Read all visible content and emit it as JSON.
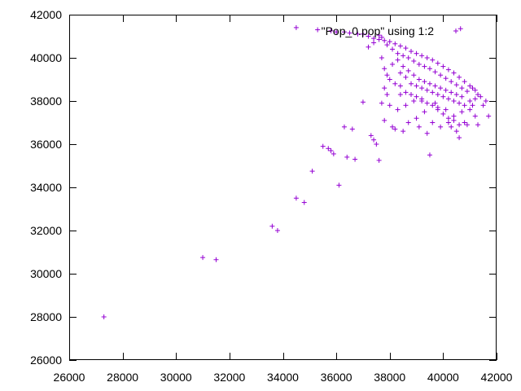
{
  "chart_data": {
    "type": "scatter",
    "title": "",
    "xlabel": "",
    "ylabel": "",
    "xlim": [
      26000,
      42000
    ],
    "ylim": [
      26000,
      42000
    ],
    "xticks": [
      26000,
      28000,
      30000,
      32000,
      34000,
      36000,
      38000,
      40000,
      42000
    ],
    "yticks": [
      26000,
      28000,
      30000,
      32000,
      34000,
      36000,
      38000,
      40000,
      42000
    ],
    "grid": false,
    "legend": {
      "position": "top-right",
      "entries": [
        "\"Pop_0.pop\" using 1:2"
      ]
    },
    "series": [
      {
        "name": "\"Pop_0.pop\" using 1:2",
        "marker": "+",
        "color": "#9400d3",
        "points": [
          [
            27300,
            28000
          ],
          [
            31000,
            30750
          ],
          [
            31500,
            30650
          ],
          [
            33600,
            32200
          ],
          [
            33800,
            32000
          ],
          [
            34500,
            33500
          ],
          [
            34800,
            33300
          ],
          [
            35100,
            34750
          ],
          [
            35500,
            35900
          ],
          [
            35700,
            35800
          ],
          [
            35800,
            35700
          ],
          [
            35900,
            35550
          ],
          [
            36100,
            34100
          ],
          [
            36300,
            36800
          ],
          [
            36400,
            35400
          ],
          [
            36600,
            36700
          ],
          [
            36700,
            35300
          ],
          [
            37000,
            37950
          ],
          [
            37300,
            36400
          ],
          [
            37400,
            36200
          ],
          [
            37500,
            36000
          ],
          [
            37600,
            35250
          ],
          [
            37700,
            37900
          ],
          [
            37800,
            37100
          ],
          [
            37800,
            38600
          ],
          [
            37900,
            38300
          ],
          [
            38000,
            37800
          ],
          [
            38100,
            36800
          ],
          [
            38200,
            36700
          ],
          [
            38300,
            37600
          ],
          [
            38400,
            38300
          ],
          [
            38500,
            36600
          ],
          [
            38600,
            37800
          ],
          [
            38700,
            37000
          ],
          [
            38900,
            38000
          ],
          [
            39000,
            37200
          ],
          [
            39100,
            36800
          ],
          [
            39200,
            38000
          ],
          [
            39300,
            37500
          ],
          [
            39400,
            36500
          ],
          [
            39500,
            35500
          ],
          [
            39600,
            37000
          ],
          [
            39700,
            37900
          ],
          [
            39800,
            37700
          ],
          [
            39900,
            36800
          ],
          [
            40100,
            37600
          ],
          [
            40200,
            37000
          ],
          [
            40300,
            36800
          ],
          [
            40400,
            37300
          ],
          [
            40500,
            36600
          ],
          [
            40600,
            36300
          ],
          [
            40700,
            37500
          ],
          [
            40800,
            37000
          ],
          [
            40900,
            36900
          ],
          [
            41000,
            37600
          ],
          [
            41100,
            37800
          ],
          [
            41200,
            37300
          ],
          [
            41300,
            36900
          ],
          [
            41500,
            37800
          ],
          [
            41700,
            37300
          ],
          [
            41600,
            38000
          ],
          [
            41400,
            38200
          ],
          [
            41300,
            38300
          ],
          [
            34500,
            41400
          ],
          [
            35300,
            41300
          ],
          [
            35800,
            41250
          ],
          [
            36000,
            41200
          ],
          [
            36300,
            41200
          ],
          [
            36500,
            41150
          ],
          [
            36800,
            41100
          ],
          [
            37000,
            41100
          ],
          [
            37200,
            41000
          ],
          [
            37400,
            40900
          ],
          [
            37600,
            40850
          ],
          [
            37800,
            40800
          ],
          [
            38000,
            40750
          ],
          [
            38200,
            40650
          ],
          [
            38400,
            40550
          ],
          [
            38600,
            40450
          ],
          [
            38800,
            40300
          ],
          [
            39000,
            40200
          ],
          [
            39200,
            40100
          ],
          [
            39400,
            40000
          ],
          [
            39600,
            39900
          ],
          [
            39800,
            39750
          ],
          [
            40000,
            39600
          ],
          [
            40200,
            39450
          ],
          [
            40400,
            39300
          ],
          [
            40600,
            39100
          ],
          [
            40800,
            38900
          ],
          [
            41000,
            38700
          ],
          [
            41100,
            38600
          ],
          [
            41200,
            38500
          ],
          [
            40650,
            41350
          ],
          [
            37200,
            40500
          ],
          [
            37400,
            40700
          ],
          [
            37600,
            41050
          ],
          [
            37700,
            40950
          ],
          [
            37900,
            40600
          ],
          [
            38100,
            40400
          ],
          [
            38300,
            40200
          ],
          [
            38500,
            40100
          ],
          [
            38700,
            40000
          ],
          [
            38900,
            39850
          ],
          [
            39100,
            39700
          ],
          [
            39300,
            39600
          ],
          [
            39500,
            39500
          ],
          [
            39700,
            39350
          ],
          [
            39900,
            39200
          ],
          [
            40100,
            39050
          ],
          [
            40300,
            38900
          ],
          [
            40500,
            38750
          ],
          [
            40700,
            38600
          ],
          [
            40900,
            38450
          ],
          [
            37700,
            40000
          ],
          [
            37800,
            39500
          ],
          [
            38000,
            39000
          ],
          [
            38200,
            38800
          ],
          [
            38400,
            39300
          ],
          [
            38600,
            39100
          ],
          [
            38800,
            38800
          ],
          [
            39000,
            38700
          ],
          [
            39200,
            38600
          ],
          [
            39400,
            38500
          ],
          [
            39600,
            38400
          ],
          [
            39800,
            38300
          ],
          [
            40000,
            38200
          ],
          [
            40200,
            38100
          ],
          [
            40400,
            38000
          ],
          [
            40600,
            37900
          ],
          [
            40800,
            37800
          ],
          [
            41000,
            38000
          ],
          [
            41200,
            38100
          ],
          [
            37900,
            39200
          ],
          [
            38100,
            39700
          ],
          [
            38300,
            39900
          ],
          [
            38500,
            39600
          ],
          [
            38700,
            39400
          ],
          [
            38900,
            39200
          ],
          [
            39100,
            39000
          ],
          [
            39300,
            38900
          ],
          [
            39500,
            38800
          ],
          [
            39700,
            38700
          ],
          [
            39900,
            38600
          ],
          [
            40100,
            38500
          ],
          [
            40300,
            38400
          ],
          [
            40500,
            38300
          ],
          [
            40700,
            38200
          ],
          [
            38400,
            38700
          ],
          [
            38600,
            38400
          ],
          [
            38800,
            38300
          ],
          [
            39000,
            38200
          ],
          [
            39200,
            38100
          ],
          [
            39400,
            37900
          ],
          [
            39600,
            37800
          ],
          [
            39800,
            37600
          ],
          [
            40000,
            37400
          ],
          [
            40200,
            37200
          ],
          [
            40400,
            37100
          ],
          [
            40600,
            36900
          ]
        ]
      }
    ]
  }
}
